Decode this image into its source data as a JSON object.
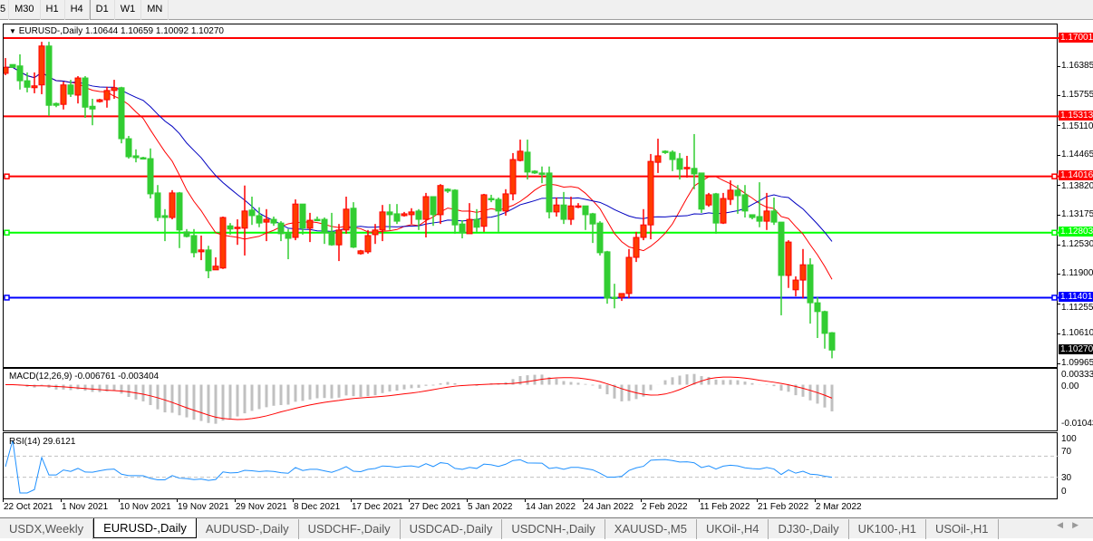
{
  "timeframe_tabs": [
    "5",
    "M30",
    "H1",
    "H4",
    "D1",
    "W1",
    "MN"
  ],
  "chart": {
    "header": "EURUSD-,Daily  1.10644 1.10659 1.10092 1.10270",
    "symbol": "EURUSD-",
    "period": "Daily",
    "ohlc": [
      "1.10644",
      "1.10659",
      "1.10092",
      "1.10270"
    ],
    "price_ticks": [
      "1.16385",
      "1.15755",
      "1.15110",
      "1.14465",
      "1.13820",
      "1.13175",
      "1.12530",
      "1.11900",
      "1.11255",
      "1.10610",
      "1.09965"
    ],
    "current_price": "1.10270",
    "hlines": [
      {
        "price": 1.17001,
        "label": "1.17001",
        "color": "#ff0000"
      },
      {
        "price": 1.15313,
        "label": "1.15313",
        "color": "#ff0000"
      },
      {
        "price": 1.14016,
        "label": "1.14016",
        "color": "#ff0000"
      },
      {
        "price": 1.12803,
        "label": "1.12803",
        "color": "#00ff00"
      },
      {
        "price": 1.11401,
        "label": "1.11401",
        "color": "#0000ff"
      }
    ],
    "colors": {
      "bull": "#ff3c00",
      "bull_border": "#ff0000",
      "bear": "#32cd32",
      "ma_fast": "#ff0000",
      "ma_slow": "#0000c0"
    },
    "candles": [
      [
        1.1624,
        1.1657,
        1.162,
        1.1637
      ],
      [
        1.1643,
        1.1643,
        1.1636,
        1.1637
      ],
      [
        1.164,
        1.1665,
        1.1589,
        1.1608
      ],
      [
        1.1608,
        1.1626,
        1.1583,
        1.1594
      ],
      [
        1.1593,
        1.1626,
        1.1581,
        1.1597
      ],
      [
        1.1599,
        1.1692,
        1.1579,
        1.1683
      ],
      [
        1.1683,
        1.1692,
        1.1532,
        1.1555
      ],
      [
        1.1559,
        1.1561,
        1.1551,
        1.1555
      ],
      [
        1.1557,
        1.1606,
        1.1546,
        1.1599
      ],
      [
        1.1599,
        1.161,
        1.1573,
        1.1579
      ],
      [
        1.1577,
        1.1618,
        1.1559,
        1.1614
      ],
      [
        1.1614,
        1.1618,
        1.1528,
        1.1551
      ],
      [
        1.1553,
        1.1569,
        1.1512,
        1.1547
      ],
      [
        1.1563,
        1.1569,
        1.1561,
        1.1567
      ],
      [
        1.1567,
        1.1595,
        1.155,
        1.1587
      ],
      [
        1.1587,
        1.161,
        1.1569,
        1.1593
      ],
      [
        1.1593,
        1.1595,
        1.1473,
        1.1483
      ],
      [
        1.1483,
        1.1489,
        1.144,
        1.1444
      ],
      [
        1.1446,
        1.146,
        1.1432,
        1.1442
      ],
      [
        1.1442,
        1.1444,
        1.1438,
        1.144
      ],
      [
        1.144,
        1.1462,
        1.1354,
        1.1364
      ],
      [
        1.1366,
        1.1383,
        1.1305,
        1.1313
      ],
      [
        1.1317,
        1.1331,
        1.1262,
        1.1313
      ],
      [
        1.1313,
        1.1372,
        1.1309,
        1.1366
      ],
      [
        1.1366,
        1.1368,
        1.1247,
        1.1286
      ],
      [
        1.1282,
        1.1288,
        1.127,
        1.1272
      ],
      [
        1.1274,
        1.1288,
        1.1227,
        1.1237
      ],
      [
        1.1239,
        1.1274,
        1.1221,
        1.1243
      ],
      [
        1.1243,
        1.1252,
        1.1182,
        1.1198
      ],
      [
        1.12,
        1.1227,
        1.12,
        1.1208
      ],
      [
        1.1204,
        1.1315,
        1.1202,
        1.1313
      ],
      [
        1.1295,
        1.1301,
        1.1276,
        1.1288
      ],
      [
        1.129,
        1.1309,
        1.1254,
        1.1292
      ],
      [
        1.129,
        1.1382,
        1.1231,
        1.1327
      ],
      [
        1.1329,
        1.1358,
        1.1297,
        1.1317
      ],
      [
        1.1317,
        1.1335,
        1.1292,
        1.1301
      ],
      [
        1.1303,
        1.1331,
        1.1262,
        1.1309
      ],
      [
        1.1309,
        1.1315,
        1.1295,
        1.1301
      ],
      [
        1.1301,
        1.1305,
        1.1262,
        1.1278
      ],
      [
        1.128,
        1.1288,
        1.1223,
        1.1268
      ],
      [
        1.127,
        1.1352,
        1.1264,
        1.1342
      ],
      [
        1.1342,
        1.1342,
        1.1276,
        1.129
      ],
      [
        1.129,
        1.1323,
        1.126,
        1.1307
      ],
      [
        1.1309,
        1.1315,
        1.1305,
        1.1307
      ],
      [
        1.1309,
        1.1313,
        1.1256,
        1.128
      ],
      [
        1.1282,
        1.1323,
        1.1252,
        1.1254
      ],
      [
        1.1254,
        1.1299,
        1.1219,
        1.1286
      ],
      [
        1.1286,
        1.1358,
        1.1278,
        1.1331
      ],
      [
        1.1333,
        1.1346,
        1.1247,
        1.1249
      ],
      [
        1.1235,
        1.1243,
        1.1233,
        1.1241
      ],
      [
        1.1239,
        1.1286,
        1.1235,
        1.1274
      ],
      [
        1.1276,
        1.1299,
        1.1256,
        1.1286
      ],
      [
        1.1286,
        1.134,
        1.1262,
        1.1325
      ],
      [
        1.1325,
        1.1342,
        1.1286,
        1.1319
      ],
      [
        1.1321,
        1.1342,
        1.1299,
        1.1305
      ],
      [
        1.1317,
        1.1325,
        1.1315,
        1.1321
      ],
      [
        1.1319,
        1.1333,
        1.1299,
        1.1325
      ],
      [
        1.1327,
        1.1331,
        1.1286,
        1.1309
      ],
      [
        1.1309,
        1.1366,
        1.127,
        1.1358
      ],
      [
        1.1358,
        1.1358,
        1.1295,
        1.1319
      ],
      [
        1.1319,
        1.1385,
        1.1299,
        1.1382
      ],
      [
        1.1374,
        1.1376,
        1.1366,
        1.137
      ],
      [
        1.1372,
        1.1374,
        1.1278,
        1.1297
      ],
      [
        1.1299,
        1.1307,
        1.1268,
        1.128
      ],
      [
        1.1278,
        1.1344,
        1.1278,
        1.1309
      ],
      [
        1.1309,
        1.1331,
        1.1282,
        1.1292
      ],
      [
        1.1294,
        1.1364,
        1.1282,
        1.1362
      ],
      [
        1.1354,
        1.1362,
        1.1346,
        1.1352
      ],
      [
        1.1352,
        1.1356,
        1.1282,
        1.1327
      ],
      [
        1.1327,
        1.1374,
        1.1317,
        1.1364
      ],
      [
        1.1364,
        1.1452,
        1.135,
        1.1438
      ],
      [
        1.1436,
        1.1481,
        1.1434,
        1.1456
      ],
      [
        1.1454,
        1.1481,
        1.1395,
        1.1411
      ],
      [
        1.1413,
        1.1415,
        1.1407,
        1.1409
      ],
      [
        1.1409,
        1.1423,
        1.1387,
        1.1407
      ],
      [
        1.1409,
        1.1423,
        1.1311,
        1.1325
      ],
      [
        1.1325,
        1.1356,
        1.1315,
        1.134
      ],
      [
        1.134,
        1.1368,
        1.1299,
        1.1309
      ],
      [
        1.1309,
        1.1358,
        1.1297,
        1.1338
      ],
      [
        1.1336,
        1.1344,
        1.1333,
        1.1338
      ],
      [
        1.1338,
        1.1338,
        1.1286,
        1.1319
      ],
      [
        1.1321,
        1.1323,
        1.1258,
        1.1299
      ],
      [
        1.1301,
        1.1305,
        1.1231,
        1.1237
      ],
      [
        1.1239,
        1.1241,
        1.1127,
        1.1139
      ],
      [
        1.1141,
        1.117,
        1.1117,
        1.1139
      ],
      [
        1.1141,
        1.1149,
        1.1133,
        1.1149
      ],
      [
        1.1149,
        1.1245,
        1.1139,
        1.1227
      ],
      [
        1.1227,
        1.1282,
        1.1217,
        1.127
      ],
      [
        1.127,
        1.1331,
        1.1264,
        1.1297
      ],
      [
        1.1297,
        1.145,
        1.1266,
        1.1434
      ],
      [
        1.1432,
        1.1483,
        1.1409,
        1.1446
      ],
      [
        1.1456,
        1.1458,
        1.145,
        1.1454
      ],
      [
        1.1454,
        1.1458,
        1.1413,
        1.1438
      ],
      [
        1.144,
        1.1452,
        1.1395,
        1.1417
      ],
      [
        1.1419,
        1.1446,
        1.1399,
        1.1421
      ],
      [
        1.1419,
        1.1493,
        1.1374,
        1.1407
      ],
      [
        1.1409,
        1.1409,
        1.1323,
        1.1331
      ],
      [
        1.134,
        1.1366,
        1.1336,
        1.1362
      ],
      [
        1.1364,
        1.1366,
        1.1278,
        1.1301
      ],
      [
        1.1301,
        1.1366,
        1.1299,
        1.1354
      ],
      [
        1.1352,
        1.1393,
        1.134,
        1.1372
      ],
      [
        1.1372,
        1.1383,
        1.1321,
        1.136
      ],
      [
        1.1362,
        1.1383,
        1.1313,
        1.1327
      ],
      [
        1.1319,
        1.1319,
        1.1309,
        1.1313
      ],
      [
        1.1315,
        1.1389,
        1.1292,
        1.1305
      ],
      [
        1.1305,
        1.1366,
        1.1286,
        1.1327
      ],
      [
        1.1327,
        1.1356,
        1.1297,
        1.1303
      ],
      [
        1.1303,
        1.1303,
        1.1102,
        1.1188
      ],
      [
        1.1188,
        1.1264,
        1.1161,
        1.126
      ],
      [
        1.1157,
        1.1186,
        1.1143,
        1.1178
      ],
      [
        1.1178,
        1.1245,
        1.1139,
        1.1211
      ],
      [
        1.1211,
        1.1225,
        1.1084,
        1.1129
      ],
      [
        1.1129,
        1.1141,
        1.1053,
        1.111
      ],
      [
        1.111,
        1.1112,
        1.103,
        1.1063
      ],
      [
        1.10644,
        1.10659,
        1.10092,
        1.1027
      ]
    ]
  },
  "macd": {
    "header": "MACD(12,26,9) -0.006761 -0.003404",
    "ticks": [
      "0.003331",
      "0.00",
      "-0.01043"
    ],
    "range": [
      -0.01043,
      0.003331
    ],
    "hist_color": "#c0c0c0",
    "signal_color": "#ff0000"
  },
  "rsi": {
    "header": "RSI(14) 29.6121",
    "ticks": [
      "100",
      "70",
      "30",
      "0"
    ],
    "levels": [
      70,
      30
    ],
    "line_color": "#1e90ff"
  },
  "date_labels": [
    "22 Oct 2021",
    "1 Nov 2021",
    "10 Nov 2021",
    "19 Nov 2021",
    "29 Nov 2021",
    "8 Dec 2021",
    "17 Dec 2021",
    "27 Dec 2021",
    "5 Jan 2022",
    "14 Jan 2022",
    "24 Jan 2022",
    "2 Feb 2022",
    "11 Feb 2022",
    "21 Feb 2022",
    "2 Mar 2022"
  ],
  "bottom_tabs": [
    {
      "label": "USDX,Weekly"
    },
    {
      "label": "EURUSD-,Daily",
      "active": true
    },
    {
      "label": "AUDUSD-,Daily"
    },
    {
      "label": "USDCHF-,Daily"
    },
    {
      "label": "USDCAD-,Daily"
    },
    {
      "label": "USDCNH-,Daily"
    },
    {
      "label": "XAUUSD-,M5"
    },
    {
      "label": "UKOil-,H4"
    },
    {
      "label": "DJ30-,Daily"
    },
    {
      "label": "UK100-,H1"
    },
    {
      "label": "USOil-,H1"
    }
  ],
  "scroll": {
    "left": "◀",
    "right": "▶"
  }
}
